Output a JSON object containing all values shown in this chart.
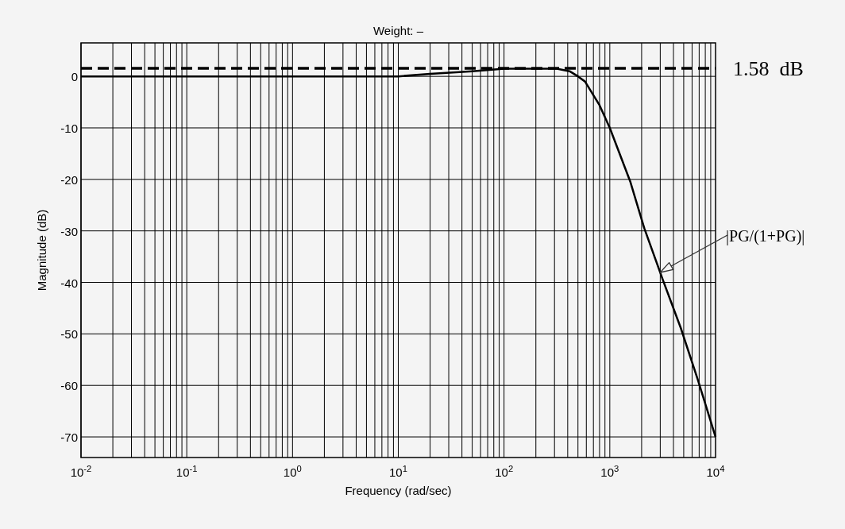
{
  "chart_data": {
    "type": "line",
    "title": "Weight: –",
    "xlabel": "Frequency (rad/sec)",
    "ylabel": "Magnitude (dB)",
    "log": "x",
    "x": [
      0.01,
      0.1,
      1,
      5,
      10,
      20,
      50,
      100,
      200,
      316,
      417,
      500,
      583,
      795,
      1000,
      1560,
      2120,
      3160,
      4700,
      6800,
      10000
    ],
    "series": [
      {
        "color": "#000000",
        "values": [
          0,
          0,
          0,
          0,
          0,
          0.5,
          1,
          1.5,
          1.5,
          1.5,
          1,
          0,
          -1,
          -5.5,
          -10,
          -20.4,
          -29.5,
          -39.4,
          -48.9,
          -58.9,
          -70
        ]
      }
    ],
    "xlim": [
      0.01,
      10000
    ],
    "ylim": [
      -74,
      6.5
    ],
    "xticks": [
      {
        "value": 0.01,
        "label": "10$^{-2}$"
      },
      {
        "value": 0.1,
        "label": "10$^{-1}$"
      },
      {
        "value": 1,
        "label": "10$^{0}$"
      },
      {
        "value": 10,
        "label": "10$^{1}$"
      },
      {
        "value": 100,
        "label": "10$^{2}$"
      },
      {
        "value": 1000,
        "label": "10$^{3}$"
      },
      {
        "value": 10000,
        "label": "10$^{4}$"
      }
    ],
    "yticks": [
      0,
      -10,
      -20,
      -30,
      -40,
      -50,
      -60,
      -70
    ],
    "grid": true,
    "marker": "none",
    "line_style": "solid",
    "ref_lines": [
      {
        "axis": "y",
        "value": 1.58,
        "label": "1.58  dB",
        "color": "#000000",
        "line_style": "dashed"
      }
    ],
    "annotations": [
      "|PG/(1+PG)|"
    ]
  }
}
